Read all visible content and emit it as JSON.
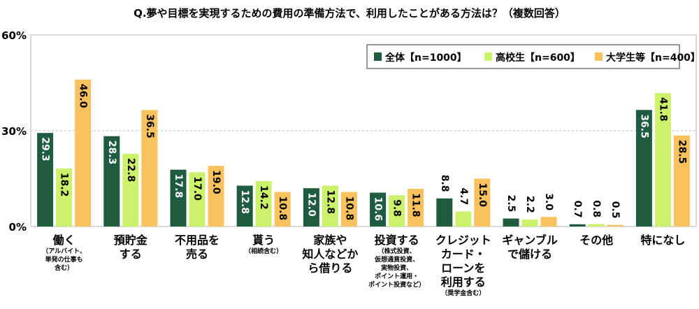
{
  "title": "Q.夢や目標を実現するための費用の準備方法で、利用したことがある方法は？（複数回答）",
  "colors": {
    "total": "#1e5b3f",
    "high_school": "#ccf16b",
    "university": "#fac25e"
  },
  "chart_data": {
    "type": "bar",
    "title": "Q.夢や目標を実現するための費用の準備方法で、利用したことがある方法は？（複数回答）",
    "ylim": [
      0,
      60
    ],
    "yticks": [
      "0%",
      "30%",
      "60%"
    ],
    "ytick_values": [
      0,
      30,
      60
    ],
    "grid": true,
    "legend_position": "top-right",
    "categories": [
      {
        "main": "働く",
        "sub": "（アルバイト、\n単発の仕事も\n含む）"
      },
      {
        "main": "預貯金\nする",
        "sub": ""
      },
      {
        "main": "不用品を\n売る",
        "sub": ""
      },
      {
        "main": "貰う",
        "sub": "（相続含む）"
      },
      {
        "main": "家族や\n知人などから借りる",
        "sub": ""
      },
      {
        "main": "投資する",
        "sub": "（株式投資、\n仮想通貨投資、\n実物投資、\nポイント運用・\nポイント投資など）"
      },
      {
        "main": "クレジット\nカード・\nローンを\n利用する",
        "sub": "（奨学金含む）"
      },
      {
        "main": "ギャンブル\nで儲ける",
        "sub": ""
      },
      {
        "main": "その他",
        "sub": ""
      },
      {
        "main": "特になし",
        "sub": ""
      }
    ],
    "series": [
      {
        "name": "全体【n=1000】",
        "color": "#1e5b3f",
        "values": [
          29.3,
          28.3,
          17.8,
          12.8,
          12.0,
          10.6,
          8.8,
          2.5,
          0.7,
          36.5
        ],
        "labels": [
          "29.3",
          "28.3",
          "17.8",
          "12.8",
          "12.0",
          "10.6",
          "8.8",
          "2.5",
          "0.7",
          "36.5"
        ]
      },
      {
        "name": "高校生【n=600】",
        "color": "#ccf16b",
        "values": [
          18.2,
          22.8,
          17.0,
          14.2,
          12.8,
          9.8,
          4.7,
          2.2,
          0.8,
          41.8
        ],
        "labels": [
          "18.2",
          "22.8",
          "17.0",
          "14.2",
          "12.8",
          "9.8",
          "4.7",
          "2.2",
          "0.8",
          "41.8"
        ]
      },
      {
        "name": "大学生等【n=400】",
        "color": "#fac25e",
        "values": [
          46.0,
          36.5,
          19.0,
          10.8,
          10.8,
          11.8,
          15.0,
          3.0,
          0.5,
          28.5
        ],
        "labels": [
          "46.0",
          "36.5",
          "19.0",
          "10.8",
          "10.8",
          "11.8",
          "15.0",
          "3.0",
          "0.5",
          "28.5"
        ]
      }
    ]
  }
}
